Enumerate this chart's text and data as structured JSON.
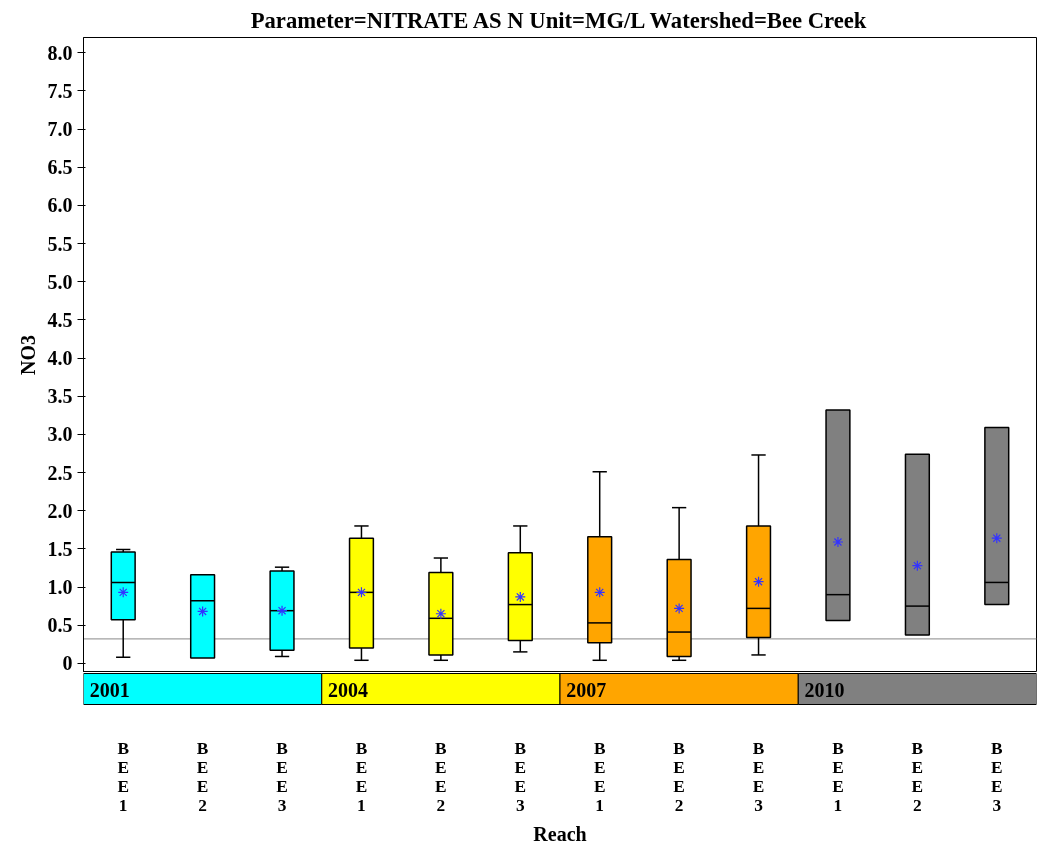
{
  "chart_data": {
    "type": "box",
    "title": "Parameter=NITRATE AS N Unit=MG/L Watershed=Bee Creek",
    "xlabel": "Reach",
    "ylabel": "NO3",
    "categories": [
      "BEE1",
      "BEE2",
      "BEE3",
      "BEE1",
      "BEE2",
      "BEE3",
      "BEE1",
      "BEE2",
      "BEE3",
      "BEE1",
      "BEE2",
      "BEE3"
    ],
    "ylim": [
      -0.12,
      8.2
    ],
    "yticks": [
      0,
      0.5,
      {
        "value": 1,
        "label": "1.0"
      },
      1.5,
      {
        "value": 2,
        "label": "2.0"
      },
      2.5,
      {
        "value": 3,
        "label": "3.0"
      },
      3.5,
      {
        "value": 4,
        "label": "4.0"
      },
      4.5,
      {
        "value": 5,
        "label": "5.0"
      },
      5.5,
      {
        "value": 6,
        "label": "6.0"
      },
      6.5,
      {
        "value": 7,
        "label": "7.0"
      },
      7.5,
      {
        "value": 8,
        "label": "8.0"
      }
    ],
    "grid": false,
    "legend": false,
    "series": [
      {
        "name": "2001",
        "color": "#00ffff",
        "boxes": [
          {
            "low": 0.08,
            "q1": 0.57,
            "median": 1.06,
            "q3": 1.46,
            "high": 1.49,
            "mean": 0.93
          },
          {
            "low": 0.07,
            "q1": 0.07,
            "median": 0.82,
            "q3": 1.16,
            "high": 1.16,
            "mean": 0.68
          },
          {
            "low": 0.09,
            "q1": 0.17,
            "median": 0.69,
            "q3": 1.21,
            "high": 1.26,
            "mean": 0.69
          },
          null,
          null,
          null,
          null,
          null,
          null,
          null,
          null,
          null
        ]
      },
      {
        "name": "2004",
        "color": "#ffff00",
        "boxes": [
          null,
          null,
          null,
          {
            "low": 0.04,
            "q1": 0.2,
            "median": 0.93,
            "q3": 1.64,
            "high": 1.8,
            "mean": 0.93
          },
          {
            "low": 0.04,
            "q1": 0.11,
            "median": 0.59,
            "q3": 1.19,
            "high": 1.38,
            "mean": 0.65
          },
          {
            "low": 0.15,
            "q1": 0.3,
            "median": 0.77,
            "q3": 1.45,
            "high": 1.8,
            "mean": 0.87
          },
          null,
          null,
          null,
          null,
          null,
          null
        ]
      },
      {
        "name": "2007",
        "color": "#ffa500",
        "boxes": [
          null,
          null,
          null,
          null,
          null,
          null,
          {
            "low": 0.04,
            "q1": 0.27,
            "median": 0.53,
            "q3": 1.66,
            "high": 2.51,
            "mean": 0.93
          },
          {
            "low": 0.04,
            "q1": 0.09,
            "median": 0.41,
            "q3": 1.36,
            "high": 2.04,
            "mean": 0.72
          },
          {
            "low": 0.11,
            "q1": 0.34,
            "median": 0.72,
            "q3": 1.8,
            "high": 2.73,
            "mean": 1.07
          },
          null,
          null,
          null
        ]
      },
      {
        "name": "2010",
        "color": "#808080",
        "boxes": [
          null,
          null,
          null,
          null,
          null,
          null,
          null,
          null,
          null,
          {
            "low": 0.56,
            "q1": 0.56,
            "median": 0.9,
            "q3": 3.32,
            "high": 3.32,
            "mean": 1.59
          },
          {
            "low": 0.37,
            "q1": 0.37,
            "median": 0.75,
            "q3": 2.74,
            "high": 2.74,
            "mean": 1.28
          },
          {
            "low": 0.77,
            "q1": 0.77,
            "median": 1.06,
            "q3": 3.09,
            "high": 3.09,
            "mean": 1.64
          }
        ]
      }
    ],
    "ref_lines": [
      {
        "axis": "y",
        "value": 0.32,
        "color": "#a0a0a0"
      }
    ]
  }
}
